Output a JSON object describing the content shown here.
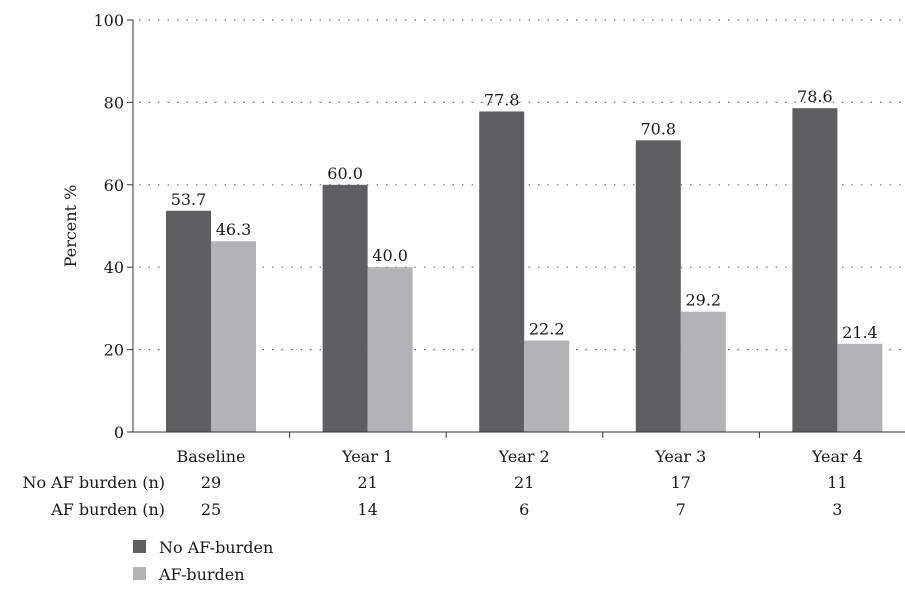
{
  "chart_data": {
    "type": "bar",
    "title": "",
    "xlabel": "",
    "ylabel": "Percent %",
    "ylim": [
      0,
      100
    ],
    "yticks": [
      0,
      20,
      40,
      60,
      80,
      100
    ],
    "grid": "dotted horizontal",
    "legend_position": "bottom-left",
    "categories": [
      "Baseline",
      "Year 1",
      "Year 2",
      "Year 3",
      "Year 4"
    ],
    "series": [
      {
        "name": "No AF-burden",
        "color": "#5f5f61",
        "values": [
          53.7,
          60.0,
          77.8,
          70.8,
          78.6
        ],
        "labels": [
          "53.7",
          "60.0",
          "77.8",
          "70.8",
          "78.6"
        ]
      },
      {
        "name": "AF-burden",
        "color": "#b3b3b5",
        "values": [
          46.3,
          40.0,
          22.2,
          29.2,
          21.4
        ],
        "labels": [
          "46.3",
          "40.0",
          "22.2",
          "29.2",
          "21.4"
        ]
      }
    ],
    "count_rows": [
      {
        "label": "No AF burden (n)",
        "values": [
          29,
          21,
          21,
          17,
          11
        ]
      },
      {
        "label": "AF burden (n)",
        "values": [
          25,
          14,
          6,
          7,
          3
        ]
      }
    ]
  }
}
